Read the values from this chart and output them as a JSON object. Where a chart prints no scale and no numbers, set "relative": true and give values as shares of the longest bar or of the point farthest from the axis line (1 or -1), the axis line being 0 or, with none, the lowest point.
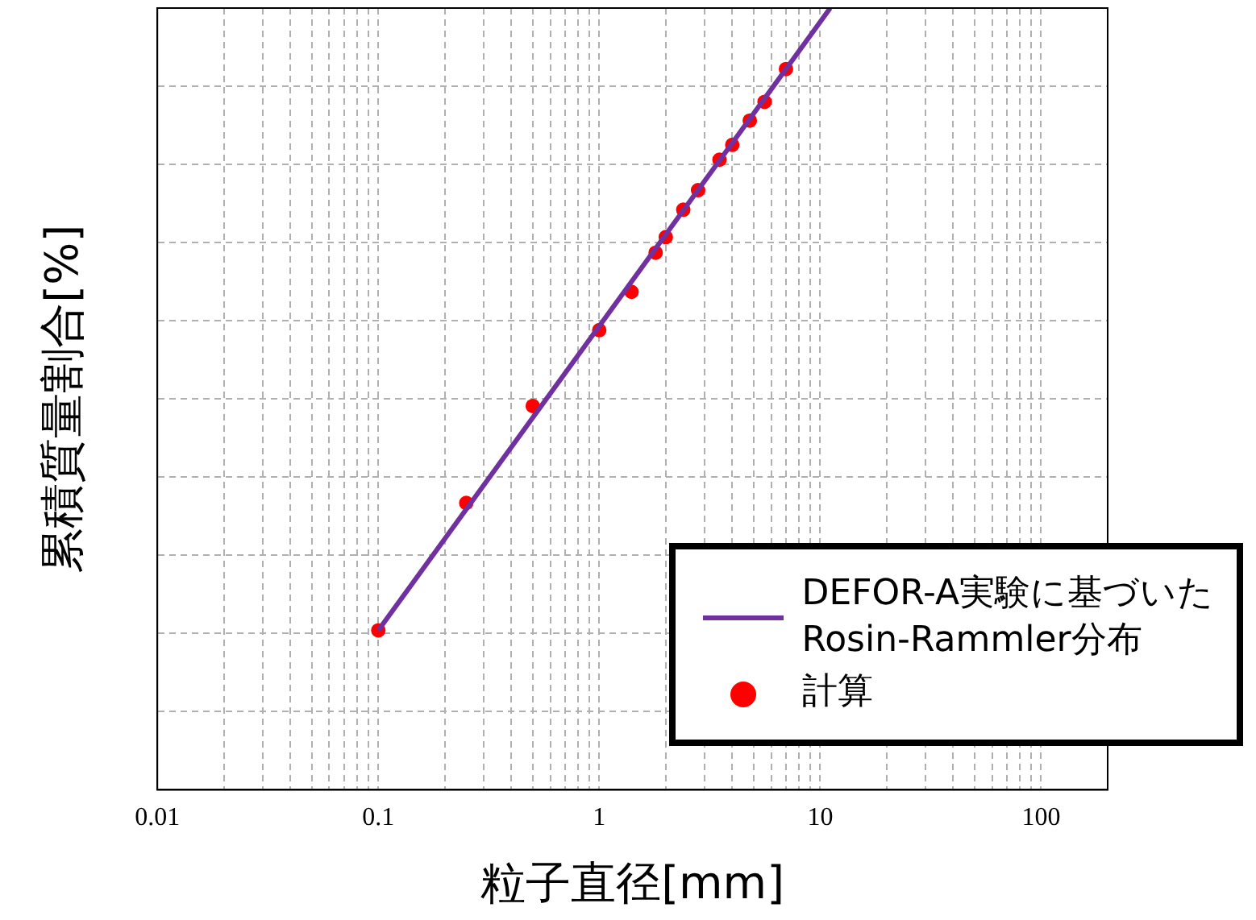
{
  "chart_data": {
    "type": "scatter",
    "xlabel": "粒子直径[mm]",
    "ylabel": "累積質量割合[%]",
    "relative": true,
    "log": "x",
    "xlim": [
      0.01,
      200
    ],
    "xticks": [
      0.01,
      0.1,
      1,
      10,
      100
    ],
    "grid": true,
    "legend": "bottom right",
    "series": [
      {
        "type": "line",
        "name": "DEFOR-A実験に基づいた\nRosin-Rammler分布",
        "color": "#7030a0",
        "x": [
          0.1,
          11.1
        ],
        "values": [
          0.204,
          1
        ],
        "marker": "none",
        "line_style": "solid"
      },
      {
        "type": "scatter",
        "name": "計算",
        "color": "#ff0000",
        "x": [
          0.1,
          0.25,
          0.5,
          1,
          1.4,
          1.8,
          2,
          2.4,
          2.8,
          3.5,
          4,
          4.8,
          5.6,
          7
        ],
        "values": [
          0.204,
          0.367,
          0.491,
          0.588,
          0.637,
          0.687,
          0.707,
          0.742,
          0.767,
          0.806,
          0.825,
          0.856,
          0.88,
          0.922
        ],
        "marker": "circle"
      }
    ]
  }
}
